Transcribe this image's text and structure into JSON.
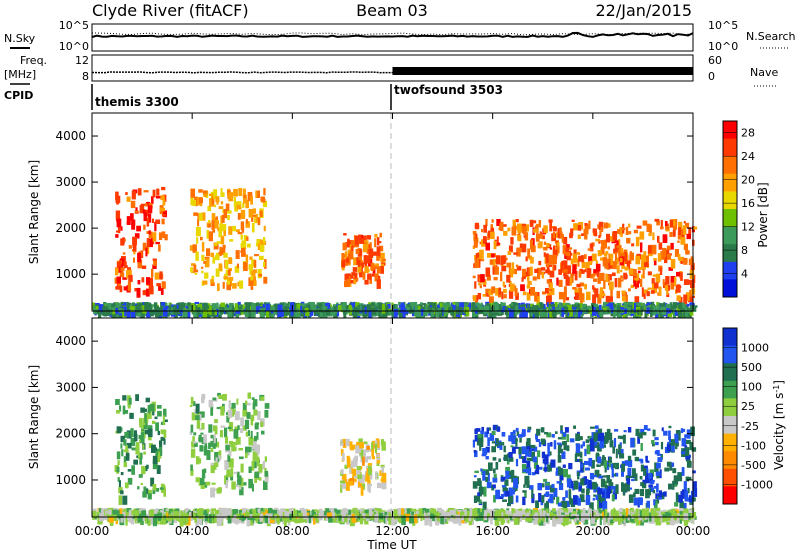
{
  "header": {
    "station": "Clyde River (fitACF)",
    "beam": "Beam 03",
    "date": "22/Jan/2015"
  },
  "summary_labels": {
    "nsky": "N.Sky",
    "nsearch": "N.Search",
    "freq": "Freq.",
    "freq_unit": "[MHz]",
    "nave": "Nave",
    "cpid": "CPID",
    "noise_ticks_left": [
      "10^5",
      "10^0"
    ],
    "noise_ticks_right": [
      "10^5",
      "10^0"
    ],
    "freq_ticks": [
      "12",
      "8"
    ],
    "nave_ticks": [
      "60",
      "0"
    ]
  },
  "cpid_segments": [
    {
      "label": "themis 3300",
      "start_hour": 0
    },
    {
      "label": "twofsound 3503",
      "start_hour": 12
    }
  ],
  "x_axis": {
    "label": "Time UT",
    "ticks": [
      "00:00",
      "04:00",
      "08:00",
      "12:00",
      "16:00",
      "20:00",
      "00:00"
    ]
  },
  "colors": {
    "power_scale": [
      "#0010d8",
      "#2040f0",
      "#2a7a4a",
      "#3c9a5a",
      "#6fc000",
      "#e8d800",
      "#ffa000",
      "#ff7000",
      "#ff3a00",
      "#ff0000"
    ],
    "velocity_scale": [
      "#1030d0",
      "#2255f0",
      "#1f6f50",
      "#3da050",
      "#8fcf3f",
      "#c8c8c8",
      "#ffb000",
      "#ff8a00",
      "#ff5000",
      "#ff0000"
    ]
  },
  "chart_data": [
    {
      "type": "heatmap",
      "panel": "power",
      "ylabel": "Slant Range [km]",
      "yticks": [
        "1000",
        "2000",
        "3000",
        "4000"
      ],
      "ylim": [
        200,
        4500
      ],
      "xlim_hours": [
        0,
        24
      ],
      "colorbar": {
        "label": "Power [dB]",
        "ticks": [
          "4",
          "8",
          "12",
          "16",
          "20",
          "24",
          "28"
        ],
        "range": [
          0,
          30
        ]
      },
      "echo_regions": [
        {
          "t_start": 0.9,
          "t_end": 2.9,
          "r_min": 650,
          "r_max": 2900,
          "level": 26
        },
        {
          "t_start": 3.9,
          "t_end": 6.9,
          "r_min": 800,
          "r_max": 2900,
          "level": 20
        },
        {
          "t_start": 9.9,
          "t_end": 11.6,
          "r_min": 850,
          "r_max": 1900,
          "level": 24
        },
        {
          "t_start": 15.2,
          "t_end": 24.0,
          "r_min": 500,
          "r_max": 2200,
          "level": 24
        },
        {
          "t_start": 0.0,
          "t_end": 24.0,
          "r_min": 200,
          "r_max": 400,
          "level": 8
        }
      ]
    },
    {
      "type": "heatmap",
      "panel": "velocity",
      "ylabel": "Slant Range [km]",
      "yticks": [
        "1000",
        "2000",
        "3000",
        "4000"
      ],
      "ylim": [
        200,
        4500
      ],
      "xlim_hours": [
        0,
        24
      ],
      "colorbar": {
        "label": "Velocity [m s^-1]",
        "ticks": [
          "1000",
          "500",
          "100",
          "25",
          "-25",
          "-100",
          "-500",
          "-1000"
        ],
        "range": [
          -1000,
          1000
        ]
      },
      "echo_regions": [
        {
          "t_start": 0.9,
          "t_end": 2.9,
          "r_min": 650,
          "r_max": 2900,
          "level": 300
        },
        {
          "t_start": 3.9,
          "t_end": 6.9,
          "r_min": 800,
          "r_max": 2900,
          "level": 150
        },
        {
          "t_start": 9.9,
          "t_end": 11.6,
          "r_min": 850,
          "r_max": 1900,
          "level": -200
        },
        {
          "t_start": 15.2,
          "t_end": 24.0,
          "r_min": 500,
          "r_max": 2200,
          "level": 700
        },
        {
          "t_start": 0.0,
          "t_end": 24.0,
          "r_min": 200,
          "r_max": 400,
          "level": 60
        }
      ]
    }
  ]
}
